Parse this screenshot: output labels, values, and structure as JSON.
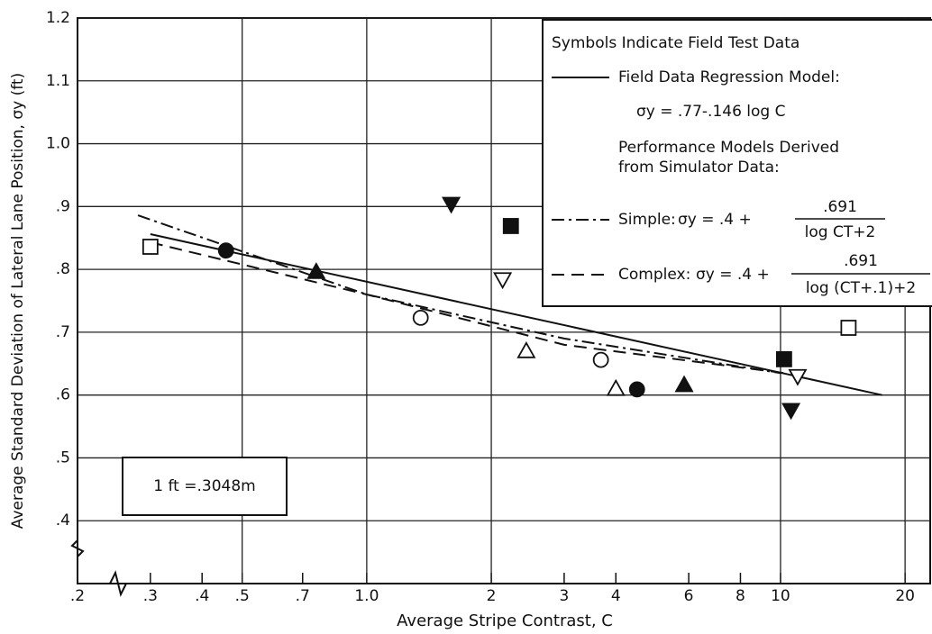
{
  "chart_data": {
    "type": "scatter",
    "xlabel": "Average Stripe Contrast, C",
    "ylabel": "Average Standard Deviation of Lateral Lane Position, σy (ft)",
    "xscale": "log",
    "xlim": [
      0.2,
      23
    ],
    "ylim": [
      0.3,
      1.2
    ],
    "xticks": [
      {
        "value": 0.2,
        "label": ".2"
      },
      {
        "value": 0.3,
        "label": ".3"
      },
      {
        "value": 0.4,
        "label": ".4"
      },
      {
        "value": 0.5,
        "label": ".5"
      },
      {
        "value": 0.7,
        "label": ".7"
      },
      {
        "value": 1,
        "label": "1.0"
      },
      2,
      3,
      4,
      6,
      8,
      10,
      20
    ],
    "xgrid": [
      0.5,
      1,
      2,
      10,
      20
    ],
    "yticks": [
      {
        "value": 0.4,
        "label": ".4"
      },
      {
        "value": 0.5,
        "label": ".5"
      },
      {
        "value": 0.6,
        "label": ".6"
      },
      {
        "value": 0.7,
        "label": ".7"
      },
      {
        "value": 0.8,
        "label": ".8"
      },
      {
        "value": 0.9,
        "label": ".9"
      },
      {
        "value": 1.0,
        "label": "1.0"
      },
      {
        "value": 1.1,
        "label": "1.1"
      },
      {
        "value": 1.2,
        "label": "1.2"
      }
    ],
    "grid": true,
    "color": "#111111",
    "points": [
      {
        "marker": "square",
        "filled": false,
        "x": [
          0.3,
          14.6
        ],
        "values": [
          0.836,
          0.707
        ]
      },
      {
        "marker": "circle",
        "filled": true,
        "x": [
          0.457,
          4.5
        ],
        "values": [
          0.83,
          0.609
        ]
      },
      {
        "marker": "triangle",
        "filled": true,
        "x": [
          0.755,
          5.85
        ],
        "values": [
          0.796,
          0.616
        ]
      },
      {
        "marker": "circle",
        "filled": false,
        "x": [
          1.35,
          3.68
        ],
        "values": [
          0.723,
          0.656
        ]
      },
      {
        "marker": "triangle-down",
        "filled": true,
        "x": [
          1.6,
          10.6
        ],
        "values": [
          0.904,
          0.576
        ]
      },
      {
        "marker": "square",
        "filled": true,
        "x": [
          2.23,
          10.2
        ],
        "values": [
          0.869,
          0.657
        ]
      },
      {
        "marker": "triangle-down",
        "filled": false,
        "x": [
          2.13,
          11.0
        ],
        "values": [
          0.784,
          0.63
        ]
      },
      {
        "marker": "triangle",
        "filled": false,
        "x": [
          2.43,
          4.0
        ],
        "values": [
          0.67,
          0.61
        ]
      }
    ],
    "series": [
      {
        "name": "Field Data Regression Model:",
        "style": "solid",
        "x": [
          0.3,
          17.6
        ],
        "values": [
          0.856,
          0.6
        ]
      },
      {
        "name": "Simple:",
        "style": "dashdot",
        "x": [
          0.28,
          1,
          3,
          10
        ],
        "values": [
          0.886,
          0.76,
          0.69,
          0.635
        ]
      },
      {
        "name": "Complex:",
        "style": "dashed",
        "x": [
          0.3,
          1,
          3,
          10.5
        ],
        "values": [
          0.843,
          0.76,
          0.68,
          0.634
        ]
      }
    ],
    "legend": {
      "title": "Symbols Indicate Field Test Data",
      "regression_formula": "σy = .77-.146 log C",
      "performance_label": [
        "Performance Models Derived",
        "from Simulator Data:"
      ],
      "simple": {
        "lhs": "σy = .4 +",
        "numerator": ".691",
        "denominator": "log CT+2"
      },
      "complex": {
        "lhs": "σy = .4 +",
        "numerator": ".691",
        "denominator": "log (CT+.1)+2"
      }
    },
    "annotation": "1 ft =.3048m"
  }
}
